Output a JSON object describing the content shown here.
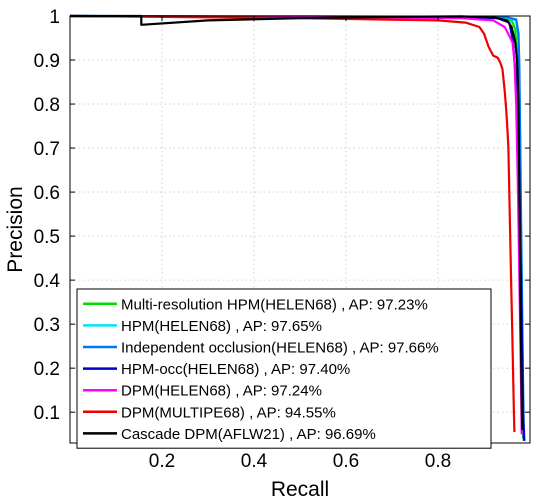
{
  "chart_data": {
    "type": "line",
    "title": "",
    "xlabel": "Recall",
    "ylabel": "Precision",
    "xlim": [
      0,
      1
    ],
    "ylim": [
      0.03,
      1
    ],
    "xticks": [
      0.2,
      0.4,
      0.6,
      0.8
    ],
    "xtick_labels": [
      "0.2",
      "0.4",
      "0.6",
      "0.8"
    ],
    "yticks": [
      0.1,
      0.2,
      0.3,
      0.4,
      0.5,
      0.6,
      0.7,
      0.8,
      0.9,
      1
    ],
    "ytick_labels": [
      "0.1",
      "0.2",
      "0.3",
      "0.4",
      "0.5",
      "0.6",
      "0.7",
      "0.8",
      "0.9",
      "1"
    ],
    "grid": true,
    "legend_position": "bottom-left",
    "series": [
      {
        "name": "Multi-resolution HPM(HELEN68) , AP: 97.23%",
        "color": "#00dd00",
        "points": [
          [
            0.0,
            1.0
          ],
          [
            0.5,
            0.998
          ],
          [
            0.85,
            0.997
          ],
          [
            0.94,
            0.995
          ],
          [
            0.96,
            0.99
          ],
          [
            0.968,
            0.97
          ],
          [
            0.972,
            0.9
          ],
          [
            0.975,
            0.8
          ],
          [
            0.978,
            0.65
          ],
          [
            0.98,
            0.5
          ],
          [
            0.982,
            0.3
          ],
          [
            0.984,
            0.1
          ],
          [
            0.985,
            0.04
          ]
        ]
      },
      {
        "name": "HPM(HELEN68) , AP: 97.65%",
        "color": "#00e5ff",
        "points": [
          [
            0.0,
            1.0
          ],
          [
            0.5,
            0.999
          ],
          [
            0.9,
            0.998
          ],
          [
            0.95,
            0.996
          ],
          [
            0.97,
            0.99
          ],
          [
            0.974,
            0.96
          ],
          [
            0.976,
            0.9
          ],
          [
            0.978,
            0.75
          ],
          [
            0.98,
            0.55
          ],
          [
            0.983,
            0.3
          ],
          [
            0.985,
            0.1
          ],
          [
            0.987,
            0.035
          ]
        ]
      },
      {
        "name": "Independent occlusion(HELEN68) , AP: 97.66%",
        "color": "#0077ff",
        "points": [
          [
            0.0,
            1.0
          ],
          [
            0.5,
            0.999
          ],
          [
            0.9,
            0.998
          ],
          [
            0.95,
            0.997
          ],
          [
            0.97,
            0.992
          ],
          [
            0.975,
            0.96
          ],
          [
            0.977,
            0.88
          ],
          [
            0.979,
            0.7
          ],
          [
            0.981,
            0.5
          ],
          [
            0.984,
            0.25
          ],
          [
            0.986,
            0.08
          ],
          [
            0.988,
            0.035
          ]
        ]
      },
      {
        "name": "HPM-occ(HELEN68) , AP: 97.40%",
        "color": "#0000cc",
        "points": [
          [
            0.0,
            1.0
          ],
          [
            0.5,
            0.998
          ],
          [
            0.88,
            0.997
          ],
          [
            0.93,
            0.995
          ],
          [
            0.955,
            0.985
          ],
          [
            0.962,
            0.95
          ],
          [
            0.966,
            0.9
          ],
          [
            0.97,
            0.85
          ],
          [
            0.975,
            0.7
          ],
          [
            0.979,
            0.5
          ],
          [
            0.982,
            0.3
          ],
          [
            0.985,
            0.1
          ],
          [
            0.987,
            0.035
          ]
        ]
      },
      {
        "name": "DPM(HELEN68) , AP: 97.24%",
        "color": "#ff00ff",
        "points": [
          [
            0.0,
            1.0
          ],
          [
            0.5,
            0.997
          ],
          [
            0.85,
            0.995
          ],
          [
            0.92,
            0.99
          ],
          [
            0.945,
            0.975
          ],
          [
            0.955,
            0.955
          ],
          [
            0.962,
            0.94
          ],
          [
            0.966,
            0.9
          ],
          [
            0.97,
            0.8
          ],
          [
            0.974,
            0.6
          ],
          [
            0.977,
            0.4
          ],
          [
            0.98,
            0.2
          ],
          [
            0.982,
            0.05
          ]
        ]
      },
      {
        "name": "DPM(MULTIPE68) , AP: 94.55%",
        "color": "#ee0000",
        "points": [
          [
            0.0,
            1.0
          ],
          [
            0.5,
            0.995
          ],
          [
            0.8,
            0.99
          ],
          [
            0.86,
            0.985
          ],
          [
            0.89,
            0.975
          ],
          [
            0.9,
            0.96
          ],
          [
            0.91,
            0.93
          ],
          [
            0.915,
            0.92
          ],
          [
            0.92,
            0.91
          ],
          [
            0.93,
            0.905
          ],
          [
            0.935,
            0.895
          ],
          [
            0.94,
            0.88
          ],
          [
            0.945,
            0.83
          ],
          [
            0.948,
            0.79
          ],
          [
            0.95,
            0.76
          ],
          [
            0.953,
            0.7
          ],
          [
            0.955,
            0.6
          ],
          [
            0.957,
            0.5
          ],
          [
            0.959,
            0.4
          ],
          [
            0.961,
            0.3
          ],
          [
            0.963,
            0.2
          ],
          [
            0.965,
            0.1
          ],
          [
            0.966,
            0.055
          ]
        ]
      },
      {
        "name": "Cascade DPM(AFLW21) , AP: 96.69%",
        "color": "#000000",
        "points": [
          [
            0.0,
            1.0
          ],
          [
            0.155,
            1.0
          ],
          [
            0.155,
            0.98
          ],
          [
            0.3,
            0.99
          ],
          [
            0.5,
            0.995
          ],
          [
            0.7,
            0.998
          ],
          [
            0.85,
            0.999
          ],
          [
            0.92,
            0.997
          ],
          [
            0.95,
            0.99
          ],
          [
            0.96,
            0.975
          ],
          [
            0.968,
            0.94
          ],
          [
            0.972,
            0.9
          ],
          [
            0.975,
            0.8
          ],
          [
            0.977,
            0.6
          ],
          [
            0.979,
            0.4
          ],
          [
            0.981,
            0.2
          ],
          [
            0.983,
            0.06
          ]
        ]
      }
    ]
  }
}
